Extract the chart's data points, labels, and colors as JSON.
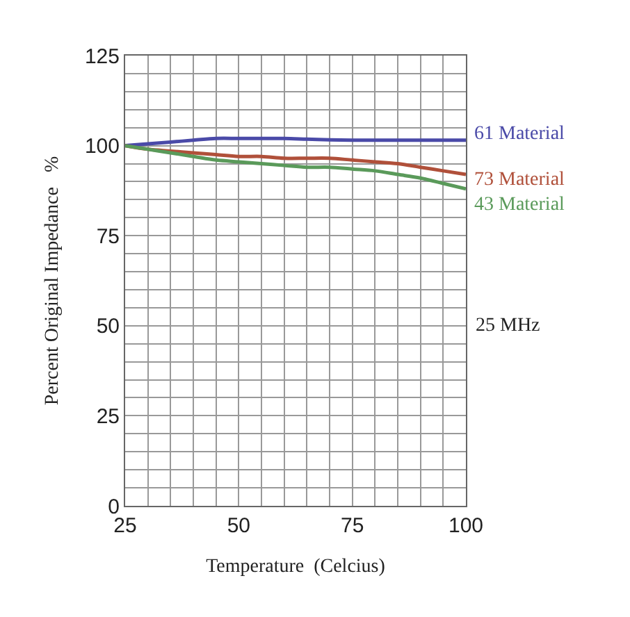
{
  "chart_data": {
    "type": "line",
    "xlabel": "Temperature  (Celcius)",
    "ylabel": "Percent Original Impedance   %",
    "x": [
      25,
      30,
      35,
      40,
      45,
      50,
      55,
      60,
      65,
      70,
      75,
      80,
      85,
      90,
      95,
      100
    ],
    "series": [
      {
        "name": "61 Material",
        "color": "#4a4aa8",
        "values": [
          100,
          100.5,
          101,
          101.5,
          102,
          102,
          102,
          102,
          101.8,
          101.6,
          101.5,
          101.5,
          101.5,
          101.5,
          101.5,
          101.5
        ]
      },
      {
        "name": "73 Material",
        "color": "#b0503a",
        "values": [
          100,
          99,
          98.5,
          98,
          97.5,
          97,
          97,
          96.5,
          96.5,
          96.5,
          96,
          95.5,
          95,
          94,
          93,
          92
        ]
      },
      {
        "name": "43 Material",
        "color": "#5a9a5a",
        "values": [
          100,
          99,
          98,
          97,
          96,
          95.5,
          95,
          94.5,
          94,
          94,
          93.5,
          93,
          92,
          91,
          89.5,
          88
        ]
      }
    ],
    "annotations": [
      "25 MHz"
    ],
    "xlim": [
      25,
      100
    ],
    "xticks": [
      25,
      {
        "value": 30,
        "label": null
      },
      {
        "value": 35,
        "label": null
      },
      {
        "value": 40,
        "label": null
      },
      {
        "value": 45,
        "label": null
      },
      50,
      {
        "value": 55,
        "label": null
      },
      {
        "value": 60,
        "label": null
      },
      {
        "value": 65,
        "label": null
      },
      {
        "value": 70,
        "label": null
      },
      75,
      {
        "value": 80,
        "label": null
      },
      {
        "value": 85,
        "label": null
      },
      {
        "value": 90,
        "label": null
      },
      {
        "value": 95,
        "label": null
      },
      100
    ],
    "ylim": [
      0,
      125
    ],
    "yticks": [
      0,
      {
        "value": 5,
        "label": null
      },
      {
        "value": 10,
        "label": null
      },
      {
        "value": 15,
        "label": null
      },
      {
        "value": 20,
        "label": null
      },
      25,
      {
        "value": 30,
        "label": null
      },
      {
        "value": 35,
        "label": null
      },
      {
        "value": 40,
        "label": null
      },
      {
        "value": 45,
        "label": null
      },
      50,
      {
        "value": 55,
        "label": null
      },
      {
        "value": 60,
        "label": null
      },
      {
        "value": 65,
        "label": null
      },
      {
        "value": 70,
        "label": null
      },
      75,
      {
        "value": 80,
        "label": null
      },
      {
        "value": 85,
        "label": null
      },
      {
        "value": 90,
        "label": null
      },
      {
        "value": 95,
        "label": null
      },
      100,
      {
        "value": 105,
        "label": null
      },
      {
        "value": 110,
        "label": null
      },
      {
        "value": 115,
        "label": null
      },
      {
        "value": 120,
        "label": null
      },
      125
    ],
    "grid": true,
    "legend": false,
    "marker": "none",
    "line_style": "solid"
  }
}
